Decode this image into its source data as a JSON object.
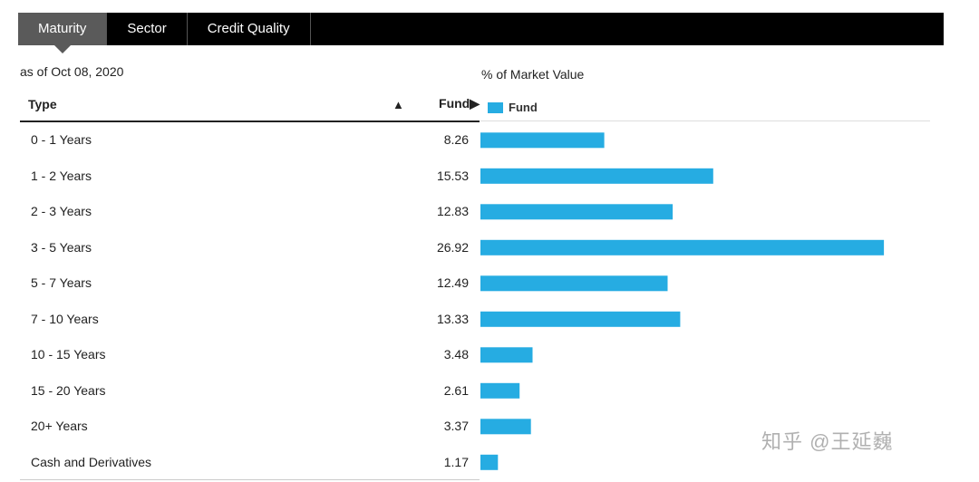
{
  "tabs": [
    {
      "label": "Maturity",
      "active": true
    },
    {
      "label": "Sector",
      "active": false
    },
    {
      "label": "Credit Quality",
      "active": false
    }
  ],
  "as_of": "as of Oct 08, 2020",
  "table": {
    "col_type": "Type",
    "sort_indicator": "▲",
    "col_fund": "Fund▶"
  },
  "chart_data": {
    "type": "bar",
    "orientation": "horizontal",
    "title": "% of Market Value",
    "legend": [
      "Fund"
    ],
    "categories": [
      "0 - 1 Years",
      "1 - 2 Years",
      "2 - 3 Years",
      "3 - 5 Years",
      "5 - 7 Years",
      "7 - 10 Years",
      "10 - 15 Years",
      "15 - 20 Years",
      "20+ Years",
      "Cash and Derivatives"
    ],
    "labels": [
      "8.26",
      "15.53",
      "12.83",
      "26.92",
      "12.49",
      "13.33",
      "3.48",
      "2.61",
      "3.37",
      "1.17"
    ],
    "series": [
      {
        "name": "Fund",
        "values": [
          8.26,
          15.53,
          12.83,
          26.92,
          12.49,
          13.33,
          3.48,
          2.61,
          3.37,
          1.17
        ]
      }
    ],
    "xlim": [
      0,
      30
    ],
    "color": "#26ACE2"
  },
  "watermark": "知乎 @王延巍"
}
